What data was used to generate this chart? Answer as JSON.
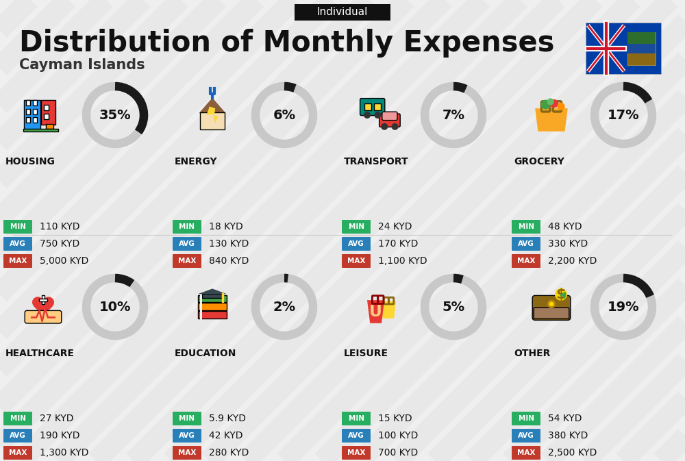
{
  "title": "Distribution of Monthly Expenses",
  "subtitle": "Cayman Islands",
  "tag": "Individual",
  "bg_color": "#efefef",
  "categories": [
    {
      "name": "HOUSING",
      "pct": 35,
      "min_val": "110 KYD",
      "avg_val": "750 KYD",
      "max_val": "5,000 KYD",
      "row": 0,
      "col": 0
    },
    {
      "name": "ENERGY",
      "pct": 6,
      "min_val": "18 KYD",
      "avg_val": "130 KYD",
      "max_val": "840 KYD",
      "row": 0,
      "col": 1
    },
    {
      "name": "TRANSPORT",
      "pct": 7,
      "min_val": "24 KYD",
      "avg_val": "170 KYD",
      "max_val": "1,100 KYD",
      "row": 0,
      "col": 2
    },
    {
      "name": "GROCERY",
      "pct": 17,
      "min_val": "48 KYD",
      "avg_val": "330 KYD",
      "max_val": "2,200 KYD",
      "row": 0,
      "col": 3
    },
    {
      "name": "HEALTHCARE",
      "pct": 10,
      "min_val": "27 KYD",
      "avg_val": "190 KYD",
      "max_val": "1,300 KYD",
      "row": 1,
      "col": 0
    },
    {
      "name": "EDUCATION",
      "pct": 2,
      "min_val": "5.9 KYD",
      "avg_val": "42 KYD",
      "max_val": "280 KYD",
      "row": 1,
      "col": 1
    },
    {
      "name": "LEISURE",
      "pct": 5,
      "min_val": "15 KYD",
      "avg_val": "100 KYD",
      "max_val": "700 KYD",
      "row": 1,
      "col": 2
    },
    {
      "name": "OTHER",
      "pct": 19,
      "min_val": "54 KYD",
      "avg_val": "380 KYD",
      "max_val": "2,500 KYD",
      "row": 1,
      "col": 3
    }
  ],
  "min_color": "#27ae60",
  "avg_color": "#2980b9",
  "max_color": "#c0392b",
  "arc_filled": "#1a1a1a",
  "arc_bg": "#c8c8c8",
  "stripe_color": "#e8e8e8",
  "title_fontsize": 30,
  "subtitle_fontsize": 15,
  "tag_fontsize": 11,
  "cat_fontsize": 10,
  "val_fontsize": 10,
  "badge_fontsize": 7.5,
  "pct_fontsize": 14
}
